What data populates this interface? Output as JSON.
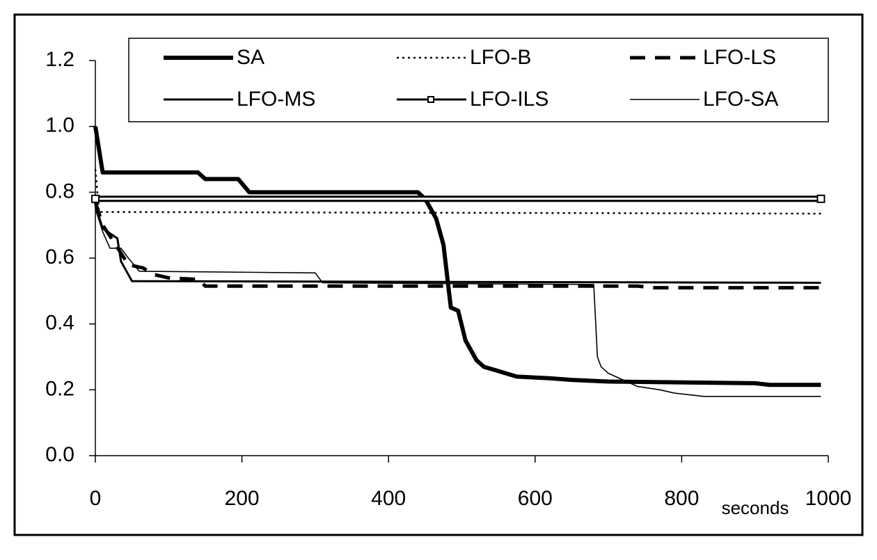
{
  "chart_data": {
    "type": "line",
    "x_label": "seconds",
    "xlim": [
      0,
      1000
    ],
    "xticks": [
      0,
      200,
      400,
      600,
      800,
      1000
    ],
    "ylim": [
      0,
      1.2
    ],
    "yticks": [
      {
        "value": 0,
        "label": "0.0"
      },
      0.2,
      0.4,
      0.6,
      0.8,
      {
        "value": 1,
        "label": "1.0"
      },
      1.2
    ],
    "grid": false,
    "legend": "top",
    "series": [
      {
        "name": "SA",
        "color": "#000000",
        "style": "thick",
        "x": [
          0,
          10,
          140,
          150,
          195,
          210,
          440,
          450,
          465,
          475,
          485,
          495,
          505,
          520,
          530,
          545,
          560,
          575,
          620,
          650,
          700,
          900,
          920,
          990
        ],
        "values": [
          1.0,
          0.86,
          0.86,
          0.84,
          0.84,
          0.8,
          0.8,
          0.78,
          0.72,
          0.64,
          0.45,
          0.44,
          0.35,
          0.29,
          0.27,
          0.26,
          0.25,
          0.24,
          0.235,
          0.23,
          0.225,
          0.22,
          0.215,
          0.215
        ]
      },
      {
        "name": "LFO-B",
        "color": "#000000",
        "style": "dotted",
        "x": [
          0,
          5,
          990
        ],
        "values": [
          0.87,
          0.74,
          0.735
        ]
      },
      {
        "name": "LFO-LS",
        "color": "#000000",
        "style": "dashed",
        "x": [
          0,
          10,
          25,
          45,
          65,
          80,
          100,
          140,
          150,
          740,
          760,
          990
        ],
        "values": [
          0.77,
          0.7,
          0.65,
          0.58,
          0.57,
          0.55,
          0.54,
          0.535,
          0.515,
          0.515,
          0.51,
          0.51
        ]
      },
      {
        "name": "LFO-MS",
        "color": "#000000",
        "style": "solid",
        "x": [
          0,
          10,
          30,
          35,
          50,
          990
        ],
        "values": [
          0.76,
          0.69,
          0.66,
          0.59,
          0.53,
          0.525
        ]
      },
      {
        "name": "LFO-ILS",
        "color": "#000000",
        "style": "solid",
        "marker": "square",
        "x": [
          0,
          990
        ],
        "values": [
          0.78,
          0.78
        ]
      },
      {
        "name": "LFO-SA",
        "color": "#000000",
        "style": "thin",
        "x": [
          0,
          10,
          20,
          35,
          45,
          60,
          300,
          310,
          680,
          685,
          690,
          700,
          720,
          740,
          770,
          790,
          830,
          990
        ],
        "values": [
          0.75,
          0.68,
          0.63,
          0.63,
          0.6,
          0.56,
          0.555,
          0.525,
          0.52,
          0.3,
          0.27,
          0.25,
          0.23,
          0.21,
          0.2,
          0.19,
          0.18,
          0.18
        ]
      }
    ]
  }
}
